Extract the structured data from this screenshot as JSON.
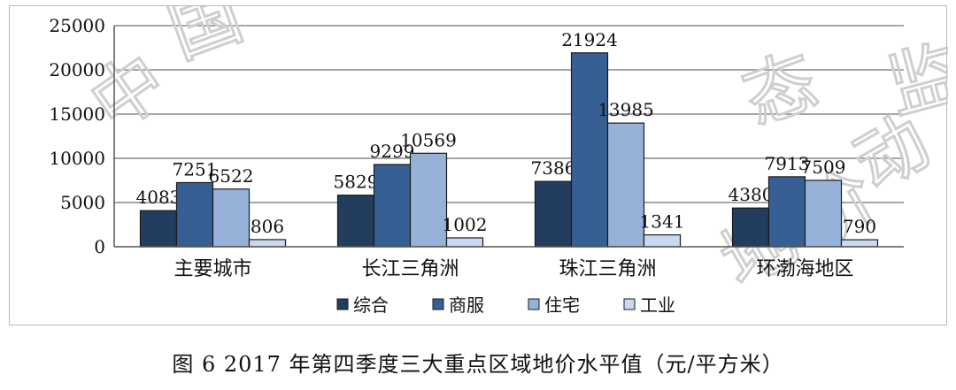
{
  "chart_data": {
    "type": "bar",
    "categories": [
      "主要城市",
      "长江三角洲",
      "珠江三角洲",
      "环渤海地区"
    ],
    "series": [
      {
        "name": "综合",
        "values": [
          4083,
          5829,
          7386,
          4380
        ]
      },
      {
        "name": "商服",
        "values": [
          7251,
          9299,
          21924,
          7913
        ]
      },
      {
        "name": "住宅",
        "values": [
          6522,
          10569,
          13985,
          7509
        ]
      },
      {
        "name": "工业",
        "values": [
          806,
          1002,
          1341,
          790
        ]
      }
    ],
    "ylim": [
      0,
      25000
    ],
    "yticks": [
      "0",
      "5000",
      "10000",
      "15000",
      "20000",
      "25000"
    ],
    "grid": true,
    "legend_position": "bottom",
    "colors": [
      "#223d5e",
      "#365f93",
      "#96b2d8",
      "#c9daf0"
    ]
  },
  "caption": "图 6  2017 年第四季度三大重点区域地价水平值（元/平方米）",
  "watermark": [
    "中",
    "国",
    "地",
    "价",
    "动",
    "态",
    "监"
  ]
}
